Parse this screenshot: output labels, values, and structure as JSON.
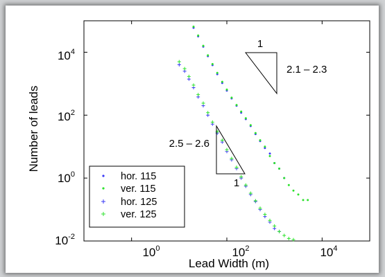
{
  "chart_data": {
    "type": "scatter",
    "xscale": "log",
    "yscale": "log",
    "xlim": [
      0.1,
      100000
    ],
    "ylim": [
      0.01,
      100000
    ],
    "grid": false,
    "title": "",
    "xlabel": "Lead Width (m)",
    "ylabel": "Number of leads",
    "xticks": [
      {
        "value": 1,
        "base": "10",
        "exp": "0"
      },
      {
        "value": 100,
        "base": "10",
        "exp": "2"
      },
      {
        "value": 10000,
        "base": "10",
        "exp": "4"
      }
    ],
    "yticks": [
      {
        "value": 0.01,
        "base": "10",
        "exp": "-2"
      },
      {
        "value": 1,
        "base": "10",
        "exp": "0"
      },
      {
        "value": 100,
        "base": "10",
        "exp": "2"
      },
      {
        "value": 10000,
        "base": "10",
        "exp": "4"
      }
    ],
    "legend": {
      "position": "bottom-left",
      "entries": [
        "hor. 115",
        "ver. 115",
        "hor. 125",
        "ver. 125"
      ]
    },
    "series": [
      {
        "name": "hor. 115",
        "color": "#3a3af5",
        "marker": "dot",
        "points": [
          [
            20,
            60000
          ],
          [
            25,
            32000
          ],
          [
            32,
            15000
          ],
          [
            40,
            7500
          ],
          [
            50,
            3900
          ],
          [
            63,
            2000
          ],
          [
            80,
            1050
          ],
          [
            100,
            600
          ],
          [
            126,
            340
          ],
          [
            160,
            200
          ],
          [
            200,
            120
          ],
          [
            250,
            75
          ],
          [
            316,
            45
          ],
          [
            400,
            25
          ],
          [
            500,
            15
          ],
          [
            630,
            9
          ],
          [
            800,
            6
          ],
          [
            1000,
            3
          ],
          [
            1260,
            2
          ],
          [
            1600,
            1
          ]
        ]
      },
      {
        "name": "ver. 115",
        "color": "#2ee22e",
        "marker": "dot",
        "points": [
          [
            20,
            65000
          ],
          [
            25,
            34000
          ],
          [
            32,
            16000
          ],
          [
            40,
            8000
          ],
          [
            50,
            4200
          ],
          [
            63,
            2200
          ],
          [
            80,
            1150
          ],
          [
            100,
            650
          ],
          [
            126,
            360
          ],
          [
            160,
            210
          ],
          [
            200,
            130
          ],
          [
            250,
            80
          ],
          [
            316,
            48
          ],
          [
            400,
            27
          ],
          [
            500,
            16
          ],
          [
            630,
            10
          ],
          [
            800,
            5
          ],
          [
            1000,
            3
          ],
          [
            1260,
            2
          ],
          [
            1600,
            1
          ],
          [
            2000,
            0.6
          ],
          [
            2500,
            0.4
          ],
          [
            3160,
            0.3
          ],
          [
            4000,
            0.2
          ],
          [
            5000,
            0.2
          ]
        ]
      },
      {
        "name": "hor. 125",
        "color": "#3a3af5",
        "marker": "plus",
        "points": [
          [
            10,
            4000
          ],
          [
            13,
            2500
          ],
          [
            16,
            1400
          ],
          [
            20,
            750
          ],
          [
            25,
            380
          ],
          [
            32,
            200
          ],
          [
            40,
            100
          ],
          [
            50,
            52
          ],
          [
            63,
            27
          ],
          [
            80,
            14
          ],
          [
            100,
            7
          ],
          [
            126,
            3.8
          ],
          [
            160,
            2
          ],
          [
            200,
            1
          ],
          [
            250,
            0.55
          ],
          [
            316,
            0.3
          ],
          [
            400,
            0.18
          ],
          [
            500,
            0.1
          ],
          [
            630,
            0.06
          ],
          [
            800,
            0.04
          ],
          [
            1000,
            0.025
          ],
          [
            1260,
            0.02
          ]
        ]
      },
      {
        "name": "ver. 125",
        "color": "#2ee22e",
        "marker": "plus",
        "points": [
          [
            10,
            5000
          ],
          [
            13,
            3000
          ],
          [
            16,
            1700
          ],
          [
            20,
            900
          ],
          [
            25,
            450
          ],
          [
            32,
            240
          ],
          [
            40,
            120
          ],
          [
            50,
            60
          ],
          [
            63,
            30
          ],
          [
            80,
            16
          ],
          [
            100,
            8
          ],
          [
            126,
            4.2
          ],
          [
            160,
            2.2
          ],
          [
            200,
            1.1
          ],
          [
            250,
            0.6
          ],
          [
            316,
            0.33
          ],
          [
            400,
            0.19
          ],
          [
            500,
            0.11
          ],
          [
            630,
            0.07
          ],
          [
            800,
            0.045
          ],
          [
            1000,
            0.03
          ],
          [
            1260,
            0.02
          ],
          [
            1600,
            0.015
          ],
          [
            2000,
            0.012
          ],
          [
            2500,
            0.011
          ]
        ]
      }
    ],
    "annotations": [
      {
        "id": "upper-triangle",
        "run_label": "1",
        "slope_label": "2.1 – 2.3"
      },
      {
        "id": "lower-triangle",
        "run_label": "1",
        "slope_label": "2.5 – 2.6"
      }
    ]
  }
}
